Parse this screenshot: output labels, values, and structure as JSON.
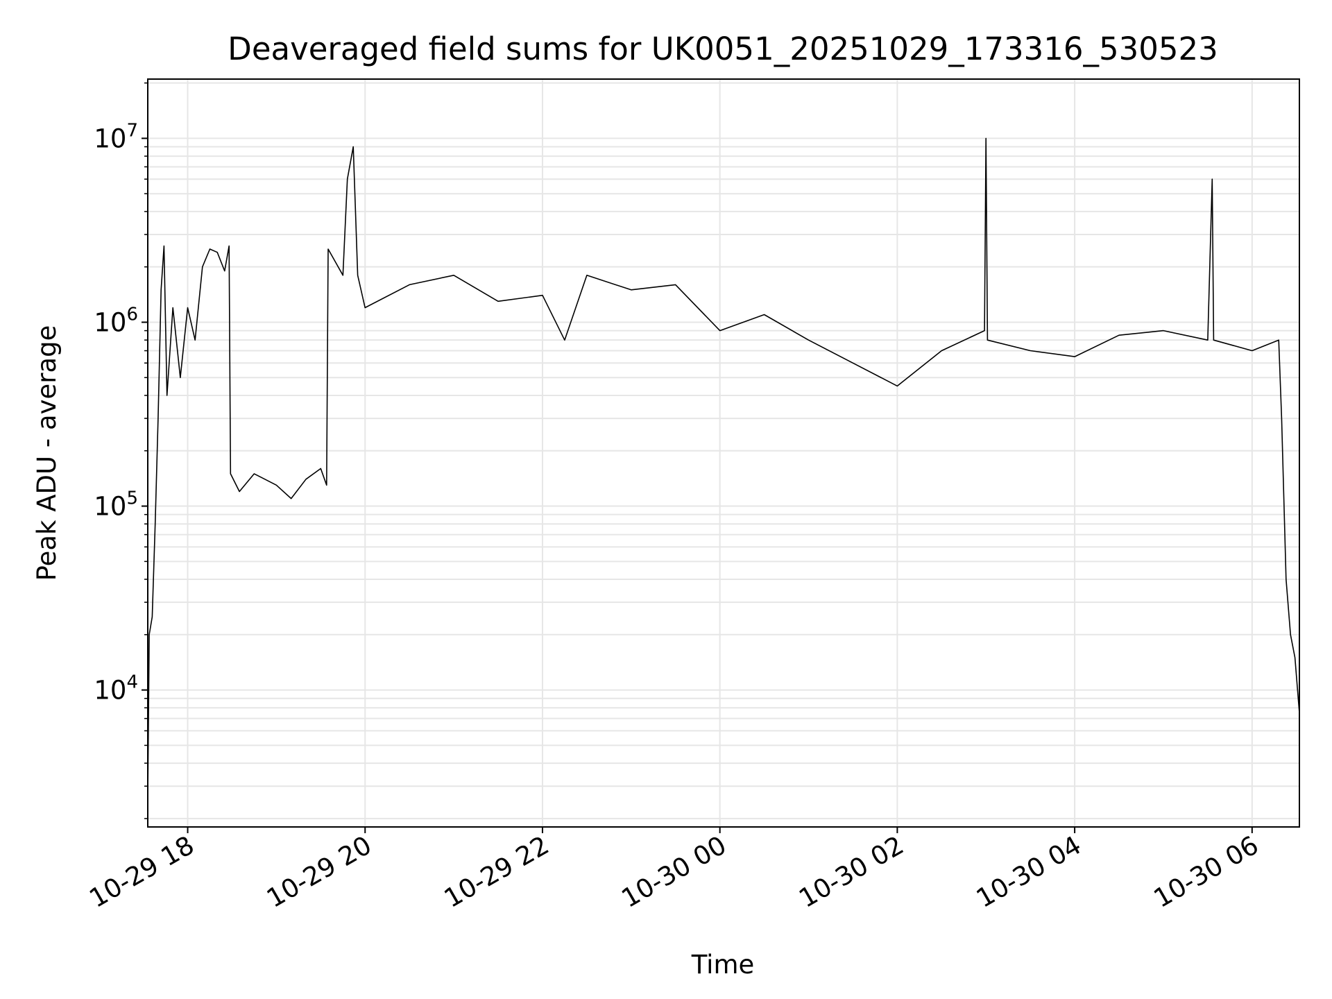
{
  "chart_data": {
    "type": "line",
    "title": "Deaveraged field sums for UK0051_20251029_173316_530523",
    "xlabel": "Time",
    "ylabel": "Peak ADU - average",
    "yscale": "log",
    "ylim": [
      1800,
      21000000
    ],
    "xlim": [
      "2025-10-29 17:33",
      "2025-10-30 06:32"
    ],
    "grid": true,
    "line_color": "#000000",
    "grid_color": "#e6e6e6",
    "x_ticks": [
      {
        "value": "2025-10-29 18:00",
        "label": "10-29 18"
      },
      {
        "value": "2025-10-29 20:00",
        "label": "10-29 20"
      },
      {
        "value": "2025-10-29 22:00",
        "label": "10-29 22"
      },
      {
        "value": "2025-10-30 00:00",
        "label": "10-30 00"
      },
      {
        "value": "2025-10-30 02:00",
        "label": "10-30 02"
      },
      {
        "value": "2025-10-30 04:00",
        "label": "10-30 04"
      },
      {
        "value": "2025-10-30 06:00",
        "label": "10-30 06"
      }
    ],
    "y_ticks": [
      {
        "value": 10000,
        "base": "10",
        "exp": "4"
      },
      {
        "value": 100000,
        "base": "10",
        "exp": "5"
      },
      {
        "value": 1000000,
        "base": "10",
        "exp": "6"
      },
      {
        "value": 10000000,
        "base": "10",
        "exp": "7"
      }
    ],
    "series": [
      {
        "points": [
          [
            "2025-10-29 17:33",
            2600
          ],
          [
            "2025-10-29 17:34",
            20000
          ],
          [
            "2025-10-29 17:36",
            25000
          ],
          [
            "2025-10-29 17:38",
            80000
          ],
          [
            "2025-10-29 17:40",
            300000
          ],
          [
            "2025-10-29 17:42",
            1500000
          ],
          [
            "2025-10-29 17:44",
            2600000
          ],
          [
            "2025-10-29 17:46",
            400000
          ],
          [
            "2025-10-29 17:50",
            1200000
          ],
          [
            "2025-10-29 17:55",
            500000
          ],
          [
            "2025-10-29 18:00",
            1200000
          ],
          [
            "2025-10-29 18:05",
            800000
          ],
          [
            "2025-10-29 18:10",
            2000000
          ],
          [
            "2025-10-29 18:15",
            2500000
          ],
          [
            "2025-10-29 18:20",
            2400000
          ],
          [
            "2025-10-29 18:25",
            1900000
          ],
          [
            "2025-10-29 18:28",
            2600000
          ],
          [
            "2025-10-29 18:29",
            150000
          ],
          [
            "2025-10-29 18:35",
            120000
          ],
          [
            "2025-10-29 18:45",
            150000
          ],
          [
            "2025-10-29 19:00",
            130000
          ],
          [
            "2025-10-29 19:10",
            110000
          ],
          [
            "2025-10-29 19:20",
            140000
          ],
          [
            "2025-10-29 19:30",
            160000
          ],
          [
            "2025-10-29 19:34",
            130000
          ],
          [
            "2025-10-29 19:35",
            2500000
          ],
          [
            "2025-10-29 19:45",
            1800000
          ],
          [
            "2025-10-29 19:48",
            6000000
          ],
          [
            "2025-10-29 19:52",
            9000000
          ],
          [
            "2025-10-29 19:55",
            1800000
          ],
          [
            "2025-10-29 20:00",
            1200000
          ],
          [
            "2025-10-29 20:30",
            1600000
          ],
          [
            "2025-10-29 21:00",
            1800000
          ],
          [
            "2025-10-29 21:30",
            1300000
          ],
          [
            "2025-10-29 22:00",
            1400000
          ],
          [
            "2025-10-29 22:15",
            800000
          ],
          [
            "2025-10-29 22:30",
            1800000
          ],
          [
            "2025-10-29 23:00",
            1500000
          ],
          [
            "2025-10-29 23:30",
            1600000
          ],
          [
            "2025-10-30 00:00",
            900000
          ],
          [
            "2025-10-30 00:30",
            1100000
          ],
          [
            "2025-10-30 01:00",
            800000
          ],
          [
            "2025-10-30 01:30",
            600000
          ],
          [
            "2025-10-30 02:00",
            450000
          ],
          [
            "2025-10-30 02:30",
            700000
          ],
          [
            "2025-10-30 02:59",
            900000
          ],
          [
            "2025-10-30 03:00",
            10000000
          ],
          [
            "2025-10-30 03:01",
            800000
          ],
          [
            "2025-10-30 03:30",
            700000
          ],
          [
            "2025-10-30 04:00",
            650000
          ],
          [
            "2025-10-30 04:30",
            850000
          ],
          [
            "2025-10-30 05:00",
            900000
          ],
          [
            "2025-10-30 05:30",
            800000
          ],
          [
            "2025-10-30 05:33",
            6000000
          ],
          [
            "2025-10-30 05:34",
            800000
          ],
          [
            "2025-10-30 06:00",
            700000
          ],
          [
            "2025-10-30 06:18",
            800000
          ],
          [
            "2025-10-30 06:20",
            300000
          ],
          [
            "2025-10-30 06:23",
            40000
          ],
          [
            "2025-10-30 06:26",
            20000
          ],
          [
            "2025-10-30 06:29",
            15000
          ],
          [
            "2025-10-30 06:32",
            7500
          ]
        ]
      }
    ]
  }
}
